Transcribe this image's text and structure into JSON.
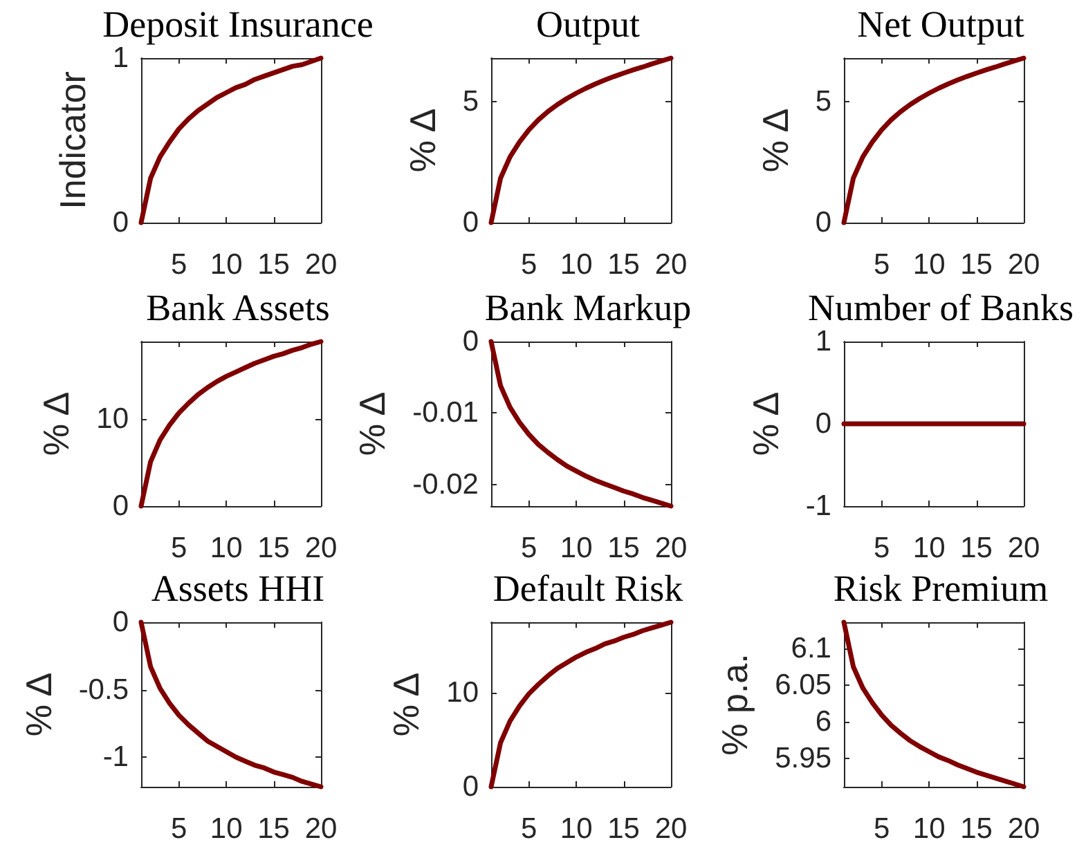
{
  "chart_data": [
    {
      "type": "line",
      "title": "Deposit Insurance",
      "ylabel": "Indicator",
      "x": [
        1,
        2,
        3,
        4,
        5,
        6,
        7,
        8,
        9,
        10,
        11,
        12,
        13,
        14,
        15,
        16,
        17,
        18,
        19,
        20
      ],
      "values": [
        0,
        0.27,
        0.4,
        0.49,
        0.57,
        0.63,
        0.68,
        0.72,
        0.76,
        0.79,
        0.82,
        0.84,
        0.87,
        0.89,
        0.91,
        0.93,
        0.95,
        0.96,
        0.98,
        1
      ],
      "color": "#800000",
      "xlim": [
        1,
        20
      ],
      "xticks": [
        5,
        10,
        15,
        20
      ],
      "ylim": [
        0,
        1
      ],
      "yticks": [
        0,
        1
      ],
      "marker": "none",
      "line_style": "solid"
    },
    {
      "type": "line",
      "title": "Output",
      "ylabel": "% Δ",
      "x": [
        1,
        2,
        3,
        4,
        5,
        6,
        7,
        8,
        9,
        10,
        11,
        12,
        13,
        14,
        15,
        16,
        17,
        18,
        19,
        20
      ],
      "values": [
        0,
        1.84,
        2.72,
        3.33,
        3.84,
        4.25,
        4.59,
        4.88,
        5.13,
        5.35,
        5.55,
        5.73,
        5.89,
        6.04,
        6.18,
        6.31,
        6.43,
        6.56,
        6.68,
        6.8
      ],
      "color": "#800000",
      "xlim": [
        1,
        20
      ],
      "xticks": [
        5,
        10,
        15,
        20
      ],
      "ylim": [
        0,
        6.8
      ],
      "yticks": [
        0,
        5
      ],
      "marker": "none",
      "line_style": "solid"
    },
    {
      "type": "line",
      "title": "Net Output",
      "ylabel": "% Δ",
      "x": [
        1,
        2,
        3,
        4,
        5,
        6,
        7,
        8,
        9,
        10,
        11,
        12,
        13,
        14,
        15,
        16,
        17,
        18,
        19,
        20
      ],
      "values": [
        0,
        1.84,
        2.72,
        3.33,
        3.84,
        4.25,
        4.59,
        4.88,
        5.13,
        5.35,
        5.55,
        5.73,
        5.89,
        6.04,
        6.18,
        6.31,
        6.43,
        6.56,
        6.68,
        6.8
      ],
      "color": "#800000",
      "xlim": [
        1,
        20
      ],
      "xticks": [
        5,
        10,
        15,
        20
      ],
      "ylim": [
        0,
        6.8
      ],
      "yticks": [
        0,
        5
      ],
      "marker": "none",
      "line_style": "solid"
    },
    {
      "type": "line",
      "title": "Bank Assets",
      "ylabel": "% Δ",
      "x": [
        1,
        2,
        3,
        4,
        5,
        6,
        7,
        8,
        9,
        10,
        11,
        12,
        13,
        14,
        15,
        16,
        17,
        18,
        19,
        20
      ],
      "values": [
        0,
        5.1,
        7.6,
        9.3,
        10.7,
        11.8,
        12.8,
        13.6,
        14.3,
        14.9,
        15.4,
        15.9,
        16.4,
        16.8,
        17.2,
        17.5,
        17.9,
        18.2,
        18.6,
        18.9
      ],
      "color": "#800000",
      "xlim": [
        1,
        20
      ],
      "xticks": [
        5,
        10,
        15,
        20
      ],
      "ylim": [
        0,
        18.9
      ],
      "yticks": [
        0,
        10
      ],
      "marker": "none",
      "line_style": "solid"
    },
    {
      "type": "line",
      "title": "Bank Markup",
      "ylabel": "% Δ",
      "x": [
        1,
        2,
        3,
        4,
        5,
        6,
        7,
        8,
        9,
        10,
        11,
        12,
        13,
        14,
        15,
        16,
        17,
        18,
        19,
        20
      ],
      "values": [
        0,
        -0.0062,
        -0.0092,
        -0.0113,
        -0.013,
        -0.0144,
        -0.0155,
        -0.0165,
        -0.0174,
        -0.0181,
        -0.0188,
        -0.0194,
        -0.0199,
        -0.0204,
        -0.0209,
        -0.0213,
        -0.0218,
        -0.0222,
        -0.0226,
        -0.023
      ],
      "color": "#800000",
      "xlim": [
        1,
        20
      ],
      "xticks": [
        5,
        10,
        15,
        20
      ],
      "ylim": [
        -0.023,
        0
      ],
      "yticks": [
        -0.02,
        -0.01,
        0
      ],
      "marker": "none",
      "line_style": "solid"
    },
    {
      "type": "line",
      "title": "Number of Banks",
      "ylabel": "% Δ",
      "x": [
        1,
        2,
        3,
        4,
        5,
        6,
        7,
        8,
        9,
        10,
        11,
        12,
        13,
        14,
        15,
        16,
        17,
        18,
        19,
        20
      ],
      "values": [
        0,
        0,
        0,
        0,
        0,
        0,
        0,
        0,
        0,
        0,
        0,
        0,
        0,
        0,
        0,
        0,
        0,
        0,
        0,
        0
      ],
      "color": "#800000",
      "xlim": [
        1,
        20
      ],
      "xticks": [
        5,
        10,
        15,
        20
      ],
      "ylim": [
        -1,
        1
      ],
      "yticks": [
        -1,
        0,
        1
      ],
      "marker": "none",
      "line_style": "solid"
    },
    {
      "type": "line",
      "title": "Assets HHI",
      "ylabel": "% Δ",
      "x": [
        1,
        2,
        3,
        4,
        5,
        6,
        7,
        8,
        9,
        10,
        11,
        12,
        13,
        14,
        15,
        16,
        17,
        18,
        19,
        20
      ],
      "values": [
        0,
        -0.33,
        -0.49,
        -0.6,
        -0.69,
        -0.76,
        -0.82,
        -0.88,
        -0.92,
        -0.96,
        -1.0,
        -1.03,
        -1.06,
        -1.08,
        -1.11,
        -1.13,
        -1.15,
        -1.18,
        -1.2,
        -1.22
      ],
      "color": "#800000",
      "xlim": [
        1,
        20
      ],
      "xticks": [
        5,
        10,
        15,
        20
      ],
      "ylim": [
        -1.22,
        0
      ],
      "yticks": [
        -1,
        -0.5,
        0
      ],
      "marker": "none",
      "line_style": "solid"
    },
    {
      "type": "line",
      "title": "Default Risk",
      "ylabel": "% Δ",
      "x": [
        1,
        2,
        3,
        4,
        5,
        6,
        7,
        8,
        9,
        10,
        11,
        12,
        13,
        14,
        15,
        16,
        17,
        18,
        19,
        20
      ],
      "values": [
        0,
        4.7,
        7.0,
        8.6,
        9.9,
        10.9,
        11.8,
        12.6,
        13.2,
        13.8,
        14.3,
        14.7,
        15.2,
        15.5,
        15.9,
        16.2,
        16.6,
        16.9,
        17.2,
        17.5
      ],
      "color": "#800000",
      "xlim": [
        1,
        20
      ],
      "xticks": [
        5,
        10,
        15,
        20
      ],
      "ylim": [
        0,
        17.5
      ],
      "yticks": [
        0,
        10
      ],
      "marker": "none",
      "line_style": "solid"
    },
    {
      "type": "line",
      "title": "Risk Premium",
      "ylabel": "% p.a.",
      "x": [
        1,
        2,
        3,
        4,
        5,
        6,
        7,
        8,
        9,
        10,
        11,
        12,
        13,
        14,
        15,
        16,
        17,
        18,
        19,
        20
      ],
      "values": [
        6.136,
        6.075,
        6.046,
        6.026,
        6.009,
        5.995,
        5.984,
        5.974,
        5.966,
        5.959,
        5.952,
        5.947,
        5.941,
        5.936,
        5.931,
        5.927,
        5.923,
        5.919,
        5.915,
        5.911
      ],
      "color": "#800000",
      "xlim": [
        1,
        20
      ],
      "xticks": [
        5,
        10,
        15,
        20
      ],
      "ylim": [
        5.911,
        6.136
      ],
      "yticks": [
        5.95,
        6,
        6.05,
        6.1
      ],
      "marker": "none",
      "line_style": "solid"
    }
  ]
}
